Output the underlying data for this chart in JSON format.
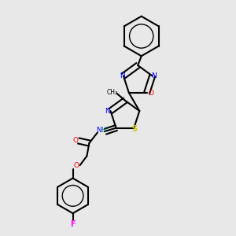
{
  "background_color": "#e8e8e8",
  "atom_colors": {
    "C": "#000000",
    "N": "#0000ff",
    "O": "#ff0000",
    "S": "#cccc00",
    "F": "#ff00ff",
    "H": "#008080"
  },
  "figsize": [
    3.0,
    3.0
  ],
  "dpi": 100
}
